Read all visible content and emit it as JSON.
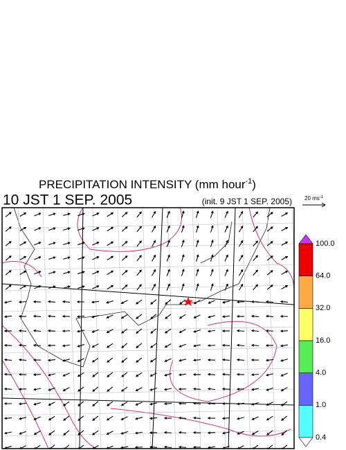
{
  "header": {
    "title": "PRECIPITATION INTENSITY (mm hour",
    "title_exponent": "-1",
    "title_close": ")",
    "valid_time": "10 JST 1 SEP. 2005",
    "init_time": "(init. 9 JST 1 SEP. 2005)"
  },
  "wind_scale": {
    "label": "20 ms",
    "exponent": "-1"
  },
  "colorbar": {
    "labels": [
      "0.4",
      "1.0",
      "4.0",
      "16.0",
      "32.0",
      "64.0",
      "100.0"
    ],
    "colors": [
      "#55ffff",
      "#6666ff",
      "#55ee55",
      "#ffff66",
      "#ffaa44",
      "#ee0000"
    ],
    "over_color": "#cc33ff",
    "under_color": "#ffffff"
  }
}
